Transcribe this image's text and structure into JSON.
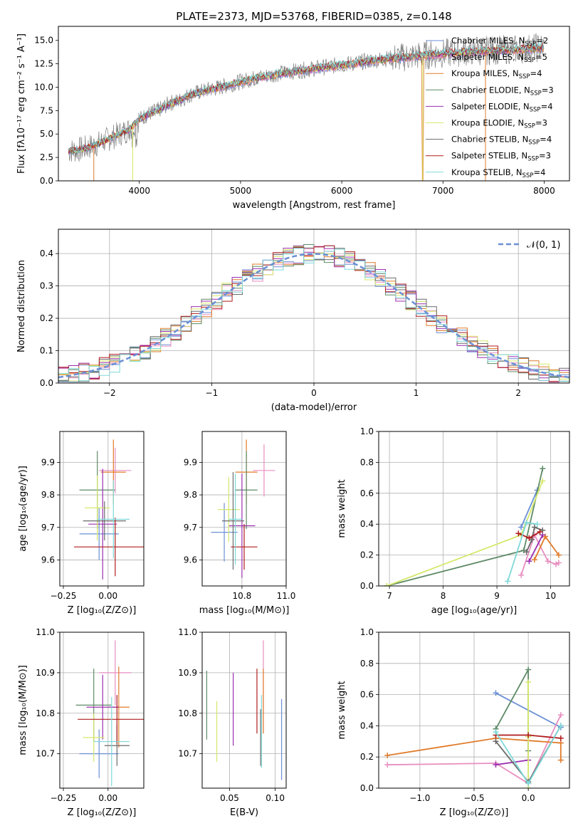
{
  "colors": {
    "Chabrier MILES": "#6b8fd6",
    "Salpeter MILES": "#e88ec0",
    "Kroupa MILES": "#e07b2a",
    "Chabrier ELODIE": "#5e8a66",
    "Salpeter ELODIE": "#9b2fb0",
    "Kroupa ELODIE": "#d5e86a",
    "Chabrier STELIB": "#6a6a6a",
    "Salpeter STELIB": "#b01c1c",
    "Kroupa STELIB": "#7ed8d8"
  },
  "chart_data": [
    {
      "id": "spectrum",
      "type": "line",
      "title": "PLATE=2373, MJD=53768, FIBERID=0385, z=0.148",
      "xlabel": "wavelength [Angstrom, rest frame]",
      "ylabel": "Flux [fλ10⁻¹⁷ erg cm⁻² s⁻¹ A⁻¹]",
      "xlim": [
        3200,
        8250
      ],
      "ylim": [
        0,
        16.5
      ],
      "xticks": [
        "4000",
        "5000",
        "6000",
        "7000",
        "8000"
      ],
      "yticks": [
        "0.0",
        "2.5",
        "5.0",
        "7.5",
        "10.0",
        "12.5",
        "15.0"
      ],
      "grid": false,
      "legend_position": "top-right",
      "series": [
        {
          "name": "Chabrier MILES",
          "nssp": "2"
        },
        {
          "name": "Salpeter MILES",
          "nssp": "5"
        },
        {
          "name": "Kroupa MILES",
          "nssp": "4"
        },
        {
          "name": "Chabrier ELODIE",
          "nssp": "3"
        },
        {
          "name": "Salpeter ELODIE",
          "nssp": "4"
        },
        {
          "name": "Kroupa ELODIE",
          "nssp": "3"
        },
        {
          "name": "Chabrier STELIB",
          "nssp": "4"
        },
        {
          "name": "Salpeter STELIB",
          "nssp": "3"
        },
        {
          "name": "Kroupa STELIB",
          "nssp": "4"
        }
      ],
      "data_spectrum": {
        "x": [
          3300,
          3400,
          3500,
          3600,
          3700,
          3800,
          3900,
          4000,
          4100,
          4200,
          4300,
          4400,
          4500,
          4600,
          4700,
          4800,
          4900,
          5000,
          5200,
          5400,
          5600,
          5800,
          6000,
          6200,
          6400,
          6600,
          6800,
          7000,
          7200,
          7400,
          7600,
          7800,
          8000
        ],
        "y": [
          3.2,
          3.3,
          3.6,
          4.0,
          4.5,
          5.0,
          5.5,
          6.6,
          7.2,
          7.6,
          8.3,
          8.6,
          9.2,
          9.5,
          9.8,
          10.0,
          10.3,
          10.6,
          11.1,
          11.5,
          11.8,
          12.1,
          12.4,
          12.7,
          13.0,
          13.2,
          13.4,
          13.6,
          13.8,
          13.9,
          14.0,
          14.1,
          14.3
        ]
      }
    },
    {
      "id": "residuals",
      "type": "line",
      "xlabel": "(data-model)/error",
      "ylabel": "Normed distribution",
      "xlim": [
        -2.5,
        2.5
      ],
      "ylim": [
        0,
        0.475
      ],
      "xticks": [
        "−2",
        "−1",
        "0",
        "1",
        "2"
      ],
      "yticks": [
        "0.0",
        "0.1",
        "0.2",
        "0.3",
        "0.4"
      ],
      "grid": true,
      "legend_position": "top-right",
      "legend_label": "𝒩(0, 1)"
    },
    {
      "id": "z-age",
      "type": "scatter",
      "xlabel": "Z [log₁₀(Z/Z⊙)]",
      "ylabel": "age  [log₁₀(age/yr)]",
      "xlim": [
        -0.27,
        0.2
      ],
      "ylim": [
        9.52,
        9.995
      ],
      "xticks": [
        "−0.25",
        "0.00"
      ],
      "yticks": [
        "9.6",
        "9.7",
        "9.8",
        "9.9"
      ],
      "grid": true,
      "points": [
        {
          "series": "Chabrier MILES",
          "x": -0.05,
          "y": 9.68,
          "xerr": 0.11,
          "yerr": 0.08
        },
        {
          "series": "Salpeter MILES",
          "x": 0.04,
          "y": 9.875,
          "xerr": 0.09,
          "yerr": 0.07
        },
        {
          "series": "Kroupa MILES",
          "x": 0.03,
          "y": 9.87,
          "xerr": 0.07,
          "yerr": 0.1
        },
        {
          "series": "Chabrier ELODIE",
          "x": -0.06,
          "y": 9.815,
          "xerr": 0.1,
          "yerr": 0.12
        },
        {
          "series": "Salpeter ELODIE",
          "x": -0.03,
          "y": 9.71,
          "xerr": 0.08,
          "yerr": 0.17
        },
        {
          "series": "Kroupa ELODIE",
          "x": -0.06,
          "y": 9.76,
          "xerr": 0.07,
          "yerr": 0.1
        },
        {
          "series": "Chabrier STELIB",
          "x": -0.02,
          "y": 9.72,
          "xerr": 0.12,
          "yerr": 0.06
        },
        {
          "series": "Salpeter STELIB",
          "x": 0.04,
          "y": 9.64,
          "xerr": 0.23,
          "yerr": 0.09
        },
        {
          "series": "Kroupa STELIB",
          "x": 0.03,
          "y": 9.725,
          "xerr": 0.09,
          "yerr": 0.12
        }
      ]
    },
    {
      "id": "mass-age",
      "type": "scatter",
      "xlabel": "mass [log₁₀(M/M⊙)]",
      "ylabel": "",
      "xlim": [
        10.62,
        11.0
      ],
      "ylim": [
        9.52,
        9.995
      ],
      "xticks": [
        "10.8",
        "11.0"
      ],
      "yticks": [
        "9.6",
        "9.7",
        "9.8",
        "9.9"
      ],
      "grid": true,
      "points": [
        {
          "series": "Chabrier MILES",
          "x": 10.72,
          "y": 9.685,
          "xerr": 0.06,
          "yerr": 0.09
        },
        {
          "series": "Salpeter MILES",
          "x": 10.9,
          "y": 9.875,
          "xerr": 0.05,
          "yerr": 0.08
        },
        {
          "series": "Kroupa MILES",
          "x": 10.82,
          "y": 9.87,
          "xerr": 0.05,
          "yerr": 0.1
        },
        {
          "series": "Chabrier ELODIE",
          "x": 10.82,
          "y": 9.815,
          "xerr": 0.05,
          "yerr": 0.12
        },
        {
          "series": "Salpeter ELODIE",
          "x": 10.8,
          "y": 9.705,
          "xerr": 0.06,
          "yerr": 0.16
        },
        {
          "series": "Kroupa ELODIE",
          "x": 10.74,
          "y": 9.755,
          "xerr": 0.05,
          "yerr": 0.1
        },
        {
          "series": "Chabrier STELIB",
          "x": 10.76,
          "y": 9.72,
          "xerr": 0.05,
          "yerr": 0.15
        },
        {
          "series": "Salpeter STELIB",
          "x": 10.81,
          "y": 9.64,
          "xerr": 0.06,
          "yerr": 0.07
        },
        {
          "series": "Kroupa STELIB",
          "x": 10.77,
          "y": 9.725,
          "xerr": 0.03,
          "yerr": 0.14
        }
      ]
    },
    {
      "id": "age-weight",
      "type": "line",
      "xlabel": "age  [log₁₀(age/yr)]",
      "ylabel": "mass weight",
      "xlim": [
        6.8,
        10.35
      ],
      "ylim": [
        0,
        1.0
      ],
      "xticks": [
        "7",
        "8",
        "9",
        "10"
      ],
      "yticks": [
        "0.0",
        "0.2",
        "0.4",
        "0.6",
        "0.8",
        "1.0"
      ],
      "grid": true,
      "series": [
        {
          "name": "Chabrier MILES",
          "x": [
            9.45,
            9.75
          ],
          "y": [
            0.38,
            0.62
          ]
        },
        {
          "name": "Salpeter MILES",
          "x": [
            9.45,
            9.7,
            9.95,
            10.1,
            10.15
          ],
          "y": [
            0.07,
            0.33,
            0.16,
            0.14,
            0.15
          ]
        },
        {
          "name": "Kroupa MILES",
          "x": [
            9.7,
            9.9,
            10.15
          ],
          "y": [
            0.17,
            0.32,
            0.2
          ]
        },
        {
          "name": "Chabrier ELODIE",
          "x": [
            6.95,
            9.5,
            9.85
          ],
          "y": [
            0.0,
            0.23,
            0.76
          ]
        },
        {
          "name": "Salpeter ELODIE",
          "x": [
            9.6,
            9.85
          ],
          "y": [
            0.16,
            0.33
          ]
        },
        {
          "name": "Kroupa ELODIE",
          "x": [
            6.95,
            9.45,
            9.85
          ],
          "y": [
            0.0,
            0.33,
            0.68
          ]
        },
        {
          "name": "Chabrier STELIB",
          "x": [
            9.55,
            9.65,
            9.7,
            9.85
          ],
          "y": [
            0.22,
            0.3,
            0.38,
            0.36
          ]
        },
        {
          "name": "Salpeter STELIB",
          "x": [
            9.4,
            9.6,
            9.8
          ],
          "y": [
            0.34,
            0.31,
            0.35
          ]
        },
        {
          "name": "Kroupa STELIB",
          "x": [
            9.2,
            9.55,
            9.75
          ],
          "y": [
            0.03,
            0.41,
            0.4
          ]
        }
      ]
    },
    {
      "id": "z-mass",
      "type": "scatter",
      "xlabel": "Z [log₁₀(Z/Z⊙)]",
      "ylabel": "mass [log₁₀(M/M⊙)]",
      "xlim": [
        -0.27,
        0.2
      ],
      "ylim": [
        10.615,
        11.0
      ],
      "xticks": [
        "−0.25",
        "0.00"
      ],
      "yticks": [
        "10.7",
        "10.8",
        "10.9",
        "11.0"
      ],
      "grid": true,
      "points": [
        {
          "series": "Chabrier MILES",
          "x": -0.05,
          "y": 10.7,
          "xerr": 0.11,
          "yerr": 0.06
        },
        {
          "series": "Salpeter MILES",
          "x": 0.04,
          "y": 10.9,
          "xerr": 0.09,
          "yerr": 0.08
        },
        {
          "series": "Kroupa MILES",
          "x": 0.06,
          "y": 10.815,
          "xerr": 0.06,
          "yerr": 0.1
        },
        {
          "series": "Chabrier ELODIE",
          "x": -0.08,
          "y": 10.82,
          "xerr": 0.1,
          "yerr": 0.09
        },
        {
          "series": "Salpeter ELODIE",
          "x": -0.03,
          "y": 10.815,
          "xerr": 0.09,
          "yerr": 0.08
        },
        {
          "series": "Kroupa ELODIE",
          "x": -0.08,
          "y": 10.74,
          "xerr": 0.06,
          "yerr": 0.06
        },
        {
          "series": "Chabrier STELIB",
          "x": 0.05,
          "y": 10.72,
          "xerr": 0.07,
          "yerr": 0.05
        },
        {
          "series": "Salpeter STELIB",
          "x": 0.05,
          "y": 10.785,
          "xerr": 0.22,
          "yerr": 0.06
        },
        {
          "series": "Kroupa STELIB",
          "x": 0.02,
          "y": 10.73,
          "xerr": 0.1,
          "yerr": 0.11
        }
      ]
    },
    {
      "id": "ebv-mass",
      "type": "scatter",
      "xlabel": "E(B-V)",
      "ylabel": "",
      "xlim": [
        0.02,
        0.112
      ],
      "ylim": [
        10.615,
        11.0
      ],
      "xticks": [
        "0.05",
        "0.10"
      ],
      "yticks": [
        "10.7",
        "10.8",
        "10.9",
        "11.0"
      ],
      "grid": true,
      "points": [
        {
          "series": "Chabrier MILES",
          "x": 0.107,
          "y": 10.735,
          "xerr": 0.0,
          "yerr": 0.1
        },
        {
          "series": "Salpeter MILES",
          "x": 0.087,
          "y": 10.865,
          "xerr": 0.0,
          "yerr": 0.115
        },
        {
          "series": "Kroupa MILES",
          "x": 0.087,
          "y": 10.83,
          "xerr": 0.0,
          "yerr": 0.08
        },
        {
          "series": "Chabrier ELODIE",
          "x": 0.025,
          "y": 10.82,
          "xerr": 0.0,
          "yerr": 0.085
        },
        {
          "series": "Salpeter ELODIE",
          "x": 0.054,
          "y": 10.81,
          "xerr": 0.0,
          "yerr": 0.09
        },
        {
          "series": "Kroupa ELODIE",
          "x": 0.036,
          "y": 10.755,
          "xerr": 0.0,
          "yerr": 0.075
        },
        {
          "series": "Chabrier STELIB",
          "x": 0.084,
          "y": 10.74,
          "xerr": 0.0,
          "yerr": 0.07
        },
        {
          "series": "Salpeter STELIB",
          "x": 0.08,
          "y": 10.83,
          "xerr": 0.0,
          "yerr": 0.08
        },
        {
          "series": "Kroupa STELIB",
          "x": 0.085,
          "y": 10.755,
          "xerr": 0.0,
          "yerr": 0.09
        }
      ]
    },
    {
      "id": "z-weight",
      "type": "line",
      "xlabel": "Z [log₁₀(Z/Z⊙)]",
      "ylabel": "mass weight",
      "xlim": [
        -1.38,
        0.38
      ],
      "ylim": [
        0,
        1.0
      ],
      "xticks": [
        "−1.0",
        "−0.5",
        "0.0"
      ],
      "yticks": [
        "0.0",
        "0.2",
        "0.4",
        "0.6",
        "0.8",
        "1.0"
      ],
      "grid": true,
      "series": [
        {
          "name": "Chabrier MILES",
          "x": [
            -0.3,
            0.3
          ],
          "y": [
            0.61,
            0.39
          ]
        },
        {
          "name": "Salpeter MILES",
          "x": [
            -1.3,
            -0.3,
            0.0,
            0.3
          ],
          "y": [
            0.15,
            0.16,
            0.03,
            0.47
          ]
        },
        {
          "name": "Kroupa MILES",
          "x": [
            -1.3,
            -0.3,
            0.3,
            0.3
          ],
          "y": [
            0.21,
            0.32,
            0.29,
            0.18
          ]
        },
        {
          "name": "Chabrier ELODIE",
          "x": [
            -0.3,
            0.0,
            0.0
          ],
          "y": [
            0.38,
            0.76,
            0.24
          ]
        },
        {
          "name": "Salpeter ELODIE",
          "x": [
            -0.3,
            0.0,
            0.0
          ],
          "y": [
            0.15,
            0.18,
            0.33
          ]
        },
        {
          "name": "Kroupa ELODIE",
          "x": [
            0.0,
            0.0,
            0.0
          ],
          "y": [
            0.0,
            0.33,
            0.68
          ]
        },
        {
          "name": "Chabrier STELIB",
          "x": [
            -0.3,
            0.0,
            0.3
          ],
          "y": [
            0.3,
            0.04,
            0.4
          ]
        },
        {
          "name": "Salpeter STELIB",
          "x": [
            -0.3,
            0.0,
            0.3
          ],
          "y": [
            0.34,
            0.34,
            0.32
          ]
        },
        {
          "name": "Kroupa STELIB",
          "x": [
            -0.3,
            0.0,
            0.3
          ],
          "y": [
            0.36,
            0.03,
            0.4
          ]
        }
      ]
    }
  ]
}
